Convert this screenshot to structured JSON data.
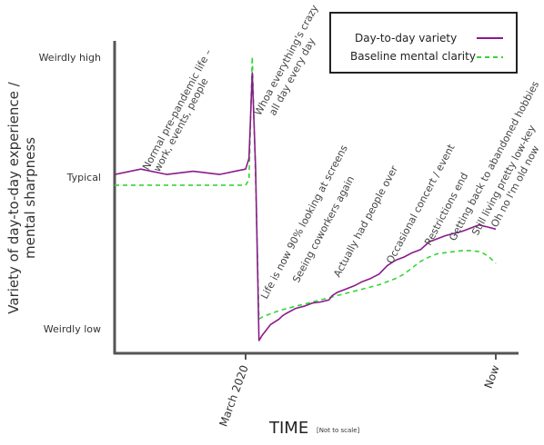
{
  "chart_data": {
    "type": "line",
    "xlabel": "TIME",
    "xlabel_note": "[Not to scale]",
    "ylabel_lines": [
      "Variety of day-to-day experience /",
      "mental sharpness"
    ],
    "y_ticks": [
      "Weirdly low",
      "Typical",
      "Weirdly high"
    ],
    "x_ticks": [
      "March 2020",
      "Now"
    ],
    "legend": {
      "position": "top-right"
    },
    "series": [
      {
        "name": "Day-to-day variety",
        "color": "#8b1a8b",
        "dash": "solid",
        "x": [
          0,
          0.1,
          0.2,
          0.3,
          0.4,
          0.5,
          0.52,
          0.54,
          0.56,
          0.58,
          0.6,
          0.65,
          0.7,
          0.72,
          0.74,
          0.8,
          0.85,
          0.9,
          0.95,
          1.0,
          1.02,
          1.05,
          1.1,
          1.15,
          1.2,
          1.25,
          1.3,
          1.35,
          1.4,
          1.45,
          1.5,
          1.55,
          1.6,
          1.65,
          1.7,
          1.75,
          1.8,
          1.85,
          1.9,
          1.92,
          1.95,
          2.0
        ],
        "values": [
          0.05,
          0.1,
          0.05,
          0.08,
          0.05,
          0.1,
          0.2,
          1.0,
          0.1,
          -1.5,
          -1.45,
          -1.35,
          -1.3,
          -1.27,
          -1.25,
          -1.2,
          -1.18,
          -1.15,
          -1.14,
          -1.12,
          -1.08,
          -1.05,
          -1.02,
          -0.99,
          -0.95,
          -0.92,
          -0.88,
          -0.8,
          -0.75,
          -0.72,
          -0.68,
          -0.65,
          -0.58,
          -0.55,
          -0.52,
          -0.5,
          -0.48,
          -0.45,
          -0.42,
          -0.43,
          -0.44,
          -0.46
        ]
      },
      {
        "name": "Baseline mental clarity",
        "color": "#33d633",
        "dash": "dashed",
        "x": [
          0,
          0.1,
          0.2,
          0.3,
          0.4,
          0.5,
          0.52,
          0.54,
          0.56,
          0.58,
          0.6,
          0.65,
          0.7,
          0.75,
          0.8,
          0.85,
          0.9,
          0.95,
          1.0,
          1.05,
          1.1,
          1.15,
          1.2,
          1.25,
          1.3,
          1.35,
          1.4,
          1.45,
          1.5,
          1.55,
          1.6,
          1.65,
          1.7,
          1.75,
          1.8,
          1.85,
          1.9,
          1.93,
          1.96,
          2.0
        ],
        "values": [
          -0.05,
          -0.05,
          -0.05,
          -0.05,
          -0.05,
          -0.05,
          0.0,
          1.15,
          0.0,
          -1.3,
          -1.28,
          -1.25,
          -1.22,
          -1.2,
          -1.18,
          -1.16,
          -1.14,
          -1.12,
          -1.1,
          -1.08,
          -1.06,
          -1.04,
          -1.02,
          -1.0,
          -0.98,
          -0.95,
          -0.92,
          -0.88,
          -0.82,
          -0.76,
          -0.72,
          -0.69,
          -0.68,
          -0.67,
          -0.66,
          -0.66,
          -0.67,
          -0.69,
          -0.72,
          -0.78
        ]
      }
    ],
    "annotations": [
      {
        "text": "Normal pre-pandemic life –",
        "x": 0.1
      },
      {
        "text": "work, events, people",
        "x": 0.1
      },
      {
        "text": "Whoa everything's crazy",
        "x": 0.55
      },
      {
        "text": "all day every day",
        "x": 0.55
      },
      {
        "text": "Life is now 90% looking at screens",
        "x": 0.58
      },
      {
        "text": "Seeing coworkers again",
        "x": 0.8
      },
      {
        "text": "Actually had people over",
        "x": 1.0
      },
      {
        "text": "Occasional concert / event",
        "x": 1.3
      },
      {
        "text": "Restrictions end",
        "x": 1.5
      },
      {
        "text": "Getting back to abandoned hobbies",
        "x": 1.65
      },
      {
        "text": "Still living pretty low-key",
        "x": 1.8
      },
      {
        "text": "Oh no I'm old now",
        "x": 1.95
      }
    ]
  }
}
